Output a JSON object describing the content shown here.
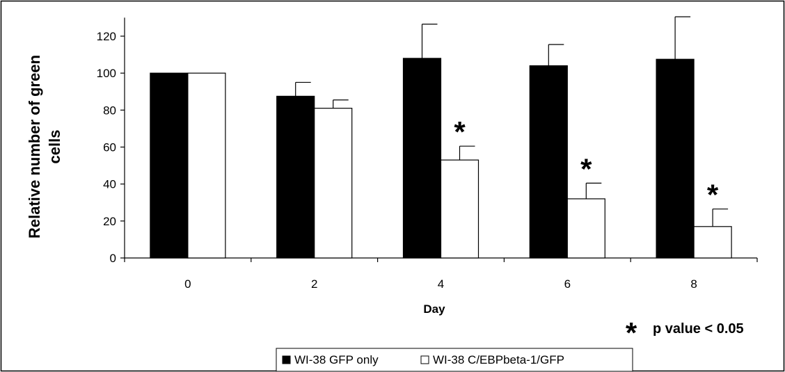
{
  "chart_data": {
    "type": "bar",
    "xlabel": "Day",
    "ylabel_lines": [
      "Relative number of green",
      "cells"
    ],
    "categories": [
      "0",
      "2",
      "4",
      "6",
      "8"
    ],
    "ylim": [
      0,
      130
    ],
    "yticks": [
      "0",
      "20",
      "40",
      "60",
      "80",
      "100",
      "120"
    ],
    "series": [
      {
        "name": "WI-38 GFP only",
        "color": "#000000",
        "values": [
          100,
          87.5,
          108,
          104,
          107.5
        ],
        "errors": [
          0,
          7.5,
          18.5,
          11.5,
          23
        ]
      },
      {
        "name": "WI-38 C/EBPbeta-1/GFP",
        "color": "#ffffff",
        "values": [
          100,
          81,
          53,
          32,
          17
        ],
        "errors": [
          0,
          4.5,
          7.5,
          8.5,
          9.5
        ]
      }
    ],
    "significant_categories": [
      "4",
      "6",
      "8"
    ],
    "significance_marker": "*",
    "annotation": "p value < 0.05",
    "legend_position": "bottom",
    "grid": false
  }
}
